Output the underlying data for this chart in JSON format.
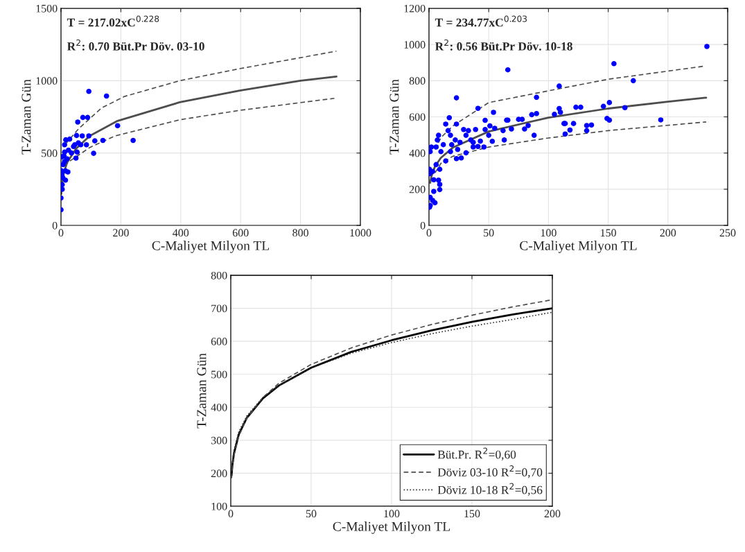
{
  "chart_data": [
    {
      "type": "scatter",
      "xlabel": "C-Maliyet Milyon TL",
      "ylabel": "T-Zaman Gün",
      "xlim": [
        0,
        1000
      ],
      "xticks": [
        0,
        200,
        400,
        600,
        800,
        1000
      ],
      "ylim": [
        0,
        1500
      ],
      "yticks": [
        0,
        500,
        1000,
        1500
      ],
      "grid": true,
      "annotations": [
        "T = 217.02xC$^{0.228}$",
        "R$^{2}$: 0.70 Büt.Pr Döv. 03-10"
      ],
      "series": [
        {
          "type": "scatter",
          "marker": "circle",
          "color": "#0000ff",
          "x": [
            93,
            152,
            73,
            89,
            56,
            189,
            52,
            71,
            93,
            16,
            29,
            113,
            140,
            241,
            109,
            85,
            66,
            58,
            46,
            12,
            50,
            54,
            0,
            0,
            4,
            2,
            15,
            23,
            12,
            4,
            12,
            15,
            4,
            6,
            10,
            20,
            25,
            3,
            7,
            35,
            42
          ],
          "values": [
            926,
            894,
            746,
            746,
            714,
            689,
            621,
            618,
            618,
            591,
            596,
            584,
            587,
            587,
            498,
            557,
            557,
            570,
            557,
            557,
            465,
            506,
            189,
            108,
            281,
            377,
            377,
            369,
            441,
            474,
            506,
            313,
            249,
            330,
            480,
            460,
            520,
            350,
            420,
            500,
            545
          ]
        },
        {
          "type": "line",
          "line_style": "solid",
          "color": "#4d4d4d",
          "x": [
            1,
            2,
            5,
            10,
            20,
            50,
            96,
            189,
            397,
            597,
            800,
            920
          ],
          "values": [
            217,
            254,
            313,
            367,
            432,
            530,
            618,
            722,
            851,
            931,
            1000,
            1029
          ]
        },
        {
          "type": "line",
          "line_style": "dashed",
          "color": "#4d4d4d",
          "x": [
            15,
            58,
            135,
            212,
            397,
            597,
            920
          ],
          "values": [
            562,
            666,
            811,
            891,
            1000,
            1083,
            1204
          ]
        },
        {
          "type": "line",
          "line_style": "dashed",
          "color": "#4d4d4d",
          "x": [
            12,
            27,
            96,
            181,
            397,
            597,
            913
          ],
          "values": [
            409,
            441,
            538,
            618,
            730,
            795,
            878
          ]
        }
      ]
    },
    {
      "type": "scatter",
      "xlabel": "C-Maliyet Milyon TL",
      "ylabel": "T-Zaman Gün",
      "xlim": [
        0,
        250
      ],
      "xticks": [
        0,
        50,
        100,
        150,
        200,
        250
      ],
      "ylim": [
        0,
        1200
      ],
      "yticks": [
        0,
        200,
        400,
        600,
        800,
        1000,
        1200
      ],
      "grid": true,
      "annotations": [
        "T = 234.77xC$^{0.203}$",
        "R$^{2}$: 0.56 Büt.Pr Döv. 10-18"
      ],
      "series": [
        {
          "type": "scatter",
          "marker": "circle",
          "color": "#0000ff",
          "x": [
            66,
            109,
            23,
            90,
            41,
            54,
            17,
            14,
            23,
            47,
            65,
            66,
            75,
            78,
            86,
            90,
            105,
            109,
            110,
            123,
            127,
            146,
            151,
            164,
            149,
            151,
            113,
            114,
            121,
            132,
            136,
            132,
            114,
            118,
            80,
            83,
            88,
            69,
            62,
            63,
            53,
            46,
            41,
            37,
            31,
            27,
            23,
            19,
            26,
            31,
            33,
            39,
            50,
            51,
            55,
            47,
            43,
            29,
            8,
            10,
            7,
            14,
            12,
            2,
            1,
            0.4,
            0.4,
            3,
            6,
            9,
            8,
            9,
            9,
            4,
            4,
            1,
            3,
            5,
            0.4,
            1,
            16,
            18,
            22,
            24,
            35,
            37,
            6,
            18,
            232.6,
            154.8,
            171,
            194
          ],
          "values": [
            860,
            770,
            705,
            708,
            647,
            625,
            595,
            560,
            560,
            581,
            582,
            582,
            586,
            586,
            612,
            618,
            614,
            646,
            625,
            653,
            653,
            658,
            679,
            651,
            591,
            582,
            563,
            563,
            563,
            552,
            555,
            524,
            505,
            527,
            533,
            552,
            498,
            533,
            524,
            472,
            465,
            433,
            436,
            433,
            401,
            373,
            369,
            446,
            459,
            498,
            524,
            530,
            498,
            550,
            537,
            530,
            466,
            530,
            498,
            408,
            472,
            356,
            446,
            433,
            408,
            310,
            285,
            298,
            336,
            310,
            250,
            226,
            198,
            252,
            188,
            155,
            138,
            125,
            100,
            110,
            524,
            498,
            472,
            420,
            472,
            459,
            433,
            408,
            989,
            894,
            800,
            583
          ]
        },
        {
          "type": "line",
          "line_style": "solid",
          "color": "#4d4d4d",
          "x": [
            1,
            2,
            5,
            10,
            20,
            50,
            100,
            150,
            200,
            232
          ],
          "values": [
            235,
            270,
            326,
            374,
            430,
            519,
            596,
            646,
            684,
            706
          ]
        },
        {
          "type": "line",
          "line_style": "dashed",
          "color": "#4d4d4d",
          "x": [
            5,
            10,
            20,
            50,
            100,
            150,
            230
          ],
          "values": [
            420,
            485,
            550,
            679,
            744,
            808,
            880
          ]
        },
        {
          "type": "line",
          "line_style": "dashed",
          "color": "#4d4d4d",
          "x": [
            5,
            10,
            20,
            50,
            100,
            150,
            232
          ],
          "values": [
            290,
            343,
            382,
            433,
            483,
            524,
            572
          ]
        }
      ]
    },
    {
      "type": "line",
      "xlabel": "C-Maliyet Milyon TL",
      "ylabel": "T-Zaman Gün",
      "xlim": [
        0,
        200
      ],
      "xticks": [
        0,
        50,
        100,
        150,
        200
      ],
      "ylim": [
        100,
        800
      ],
      "yticks": [
        100,
        200,
        300,
        400,
        500,
        600,
        700,
        800
      ],
      "grid": true,
      "legend": "bottom right",
      "x": [
        0.5,
        1,
        2,
        5,
        10,
        20,
        30,
        50,
        75,
        100,
        125,
        150,
        175,
        200
      ],
      "series": [
        {
          "name": "Büt.Pr. R$^{2}$=0,60",
          "line_style": "solid",
          "color": "#000000",
          "values": [
            194,
            225,
            260,
            318,
            368,
            427,
            466,
            520,
            568,
            603,
            633,
            659,
            681,
            700
          ]
        },
        {
          "name": "Döviz 03-10 R$^{2}$=0,70",
          "line_style": "dashed",
          "color": "#4d4d4d",
          "values": [
            185,
            217,
            254,
            313,
            367,
            430,
            473,
            530,
            580,
            619,
            651,
            679,
            704,
            726
          ]
        },
        {
          "name": "Döviz 10-18 R$^{2}$=0,56",
          "line_style": "dotted",
          "color": "#333333",
          "values": [
            204,
            235,
            270,
            326,
            374,
            430,
            465,
            519,
            564,
            596,
            623,
            646,
            666,
            688
          ]
        }
      ]
    }
  ]
}
